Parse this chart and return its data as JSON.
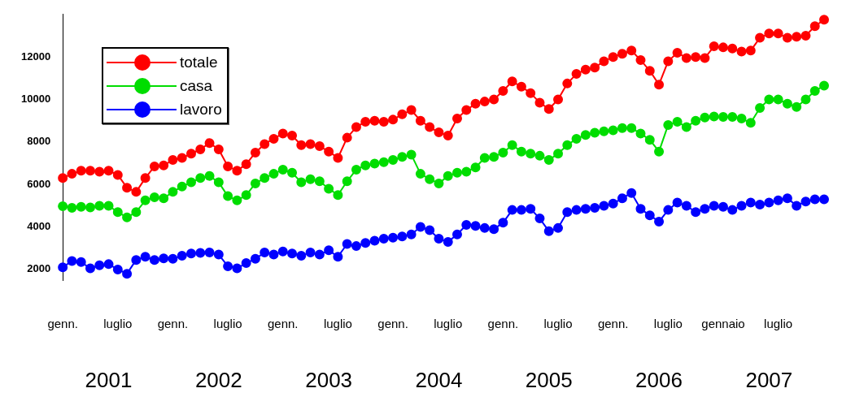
{
  "chart_data": {
    "type": "line",
    "categories": [
      "genn.",
      null,
      null,
      null,
      null,
      null,
      "luglio",
      null,
      null,
      null,
      null,
      null,
      "genn.",
      null,
      null,
      null,
      null,
      null,
      "luglio",
      null,
      null,
      null,
      null,
      null,
      "genn.",
      null,
      null,
      null,
      null,
      null,
      "luglio",
      null,
      null,
      null,
      null,
      null,
      "genn.",
      null,
      null,
      null,
      null,
      null,
      "luglio",
      null,
      null,
      null,
      null,
      null,
      "genn.",
      null,
      null,
      null,
      null,
      null,
      "luglio",
      null,
      null,
      null,
      null,
      null,
      "genn.",
      null,
      null,
      null,
      null,
      null,
      "luglio",
      null,
      null,
      null,
      null,
      null,
      "gennaio",
      null,
      null,
      null,
      null,
      null,
      "luglio",
      null,
      null,
      null,
      null,
      null
    ],
    "series": [
      {
        "name": "totale",
        "color": "#ff0000",
        "values": [
          6300,
          6500,
          6650,
          6650,
          6600,
          6650,
          6450,
          5850,
          5650,
          6300,
          6850,
          6900,
          7150,
          7250,
          7450,
          7650,
          7950,
          7650,
          6850,
          6650,
          6950,
          7500,
          7900,
          8150,
          8400,
          8300,
          7850,
          7900,
          7800,
          7550,
          7250,
          8200,
          8700,
          8950,
          9000,
          8950,
          9050,
          9300,
          9500,
          9000,
          8700,
          8450,
          8300,
          9100,
          9500,
          9800,
          9900,
          10000,
          10400,
          10850,
          10600,
          10300,
          9850,
          9550,
          10000,
          10750,
          11200,
          11400,
          11500,
          11800,
          12000,
          12150,
          12300,
          11850,
          11350,
          10700,
          11800,
          12200,
          11950,
          12000,
          11950,
          12500,
          12450,
          12400,
          12250,
          12300,
          12900,
          13100,
          13100,
          12900,
          12950,
          13000,
          13450,
          13750
        ]
      },
      {
        "name": "casa",
        "color": "#00dd00",
        "values": [
          4980,
          4900,
          4950,
          4920,
          5000,
          5000,
          4700,
          4450,
          4700,
          5250,
          5400,
          5350,
          5650,
          5900,
          6100,
          6300,
          6400,
          6100,
          5450,
          5250,
          5500,
          6050,
          6300,
          6500,
          6700,
          6550,
          6100,
          6250,
          6150,
          5800,
          5500,
          6150,
          6700,
          6900,
          6980,
          7050,
          7150,
          7300,
          7400,
          6500,
          6250,
          6050,
          6400,
          6550,
          6600,
          6800,
          7250,
          7300,
          7500,
          7850,
          7550,
          7450,
          7350,
          7150,
          7450,
          7850,
          8150,
          8330,
          8430,
          8500,
          8550,
          8650,
          8650,
          8400,
          8100,
          7550,
          8800,
          8950,
          8700,
          9000,
          9150,
          9200,
          9180,
          9180,
          9100,
          8900,
          9600,
          10000,
          10000,
          9800,
          9650,
          10000,
          10400,
          10650
        ]
      },
      {
        "name": "lavoro",
        "color": "#0000ff",
        "values": [
          2100,
          2400,
          2350,
          2050,
          2200,
          2250,
          2000,
          1800,
          2450,
          2600,
          2450,
          2520,
          2500,
          2650,
          2750,
          2780,
          2800,
          2700,
          2150,
          2050,
          2300,
          2500,
          2800,
          2700,
          2850,
          2750,
          2650,
          2800,
          2700,
          2900,
          2600,
          3200,
          3100,
          3250,
          3350,
          3450,
          3500,
          3550,
          3650,
          4000,
          3850,
          3450,
          3300,
          3650,
          4100,
          4050,
          3950,
          3900,
          4200,
          4800,
          4800,
          4850,
          4400,
          3800,
          3950,
          4700,
          4800,
          4850,
          4900,
          5000,
          5100,
          5350,
          5600,
          4850,
          4550,
          4250,
          4800,
          5150,
          5000,
          4700,
          4850,
          5000,
          4950,
          4800,
          5000,
          5150,
          5050,
          5150,
          5250,
          5350,
          5000,
          5200,
          5300,
          5300
        ]
      }
    ],
    "ylim": [
      1500,
      14000
    ],
    "yticks": [
      2000,
      4000,
      6000,
      8000,
      10000,
      12000
    ],
    "annotations": [
      "2001",
      "2002",
      "2003",
      "2004",
      "2005",
      "2006",
      "2007"
    ],
    "legend": "top left",
    "marker": "circle",
    "line_style": "solid"
  }
}
